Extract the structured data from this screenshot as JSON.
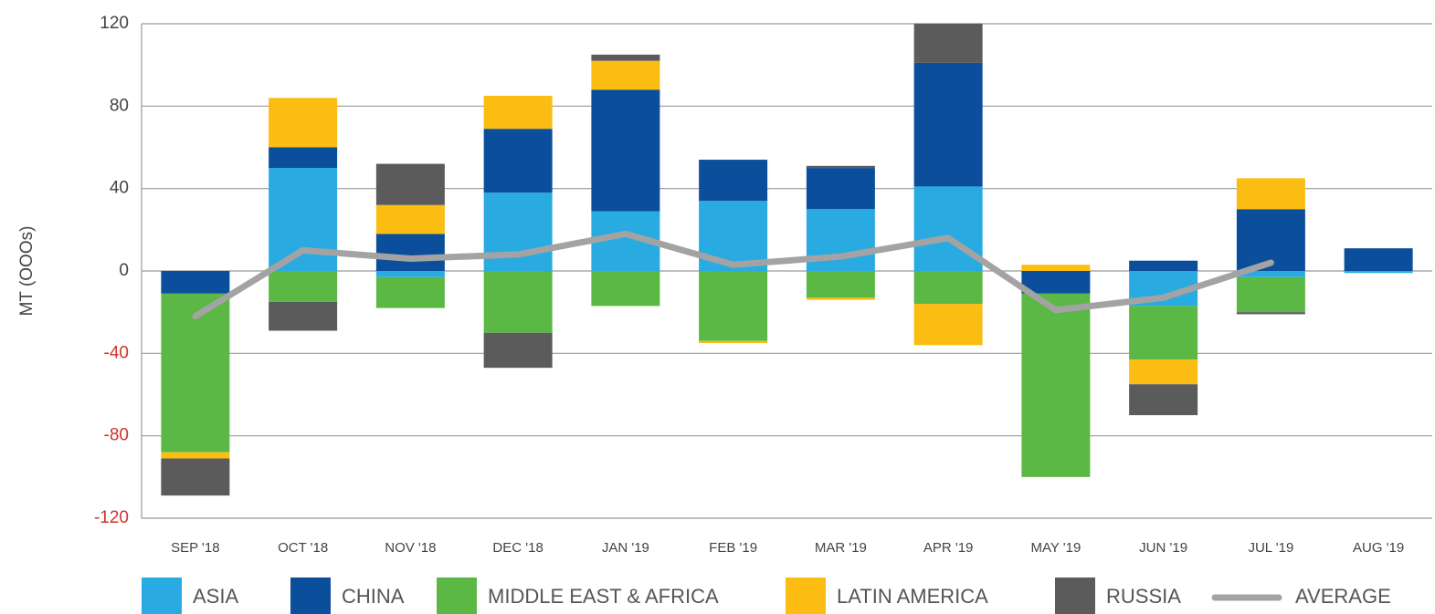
{
  "chart_data": {
    "type": "stacked_bar_line",
    "y_label": "MT (OOOs)",
    "categories": [
      "SEP '18",
      "OCT '18",
      "NOV '18",
      "DEC '18",
      "JAN '19",
      "FEB '19",
      "MAR '19",
      "APR '19",
      "MAY '19",
      "JUN '19",
      "JUL '19",
      "AUG '19"
    ],
    "series": [
      {
        "name": "ASIA",
        "color": "#29abe2",
        "values": [
          0,
          50,
          -3,
          38,
          29,
          34,
          30,
          41,
          0,
          -17,
          -3,
          -1
        ]
      },
      {
        "name": "CHINA",
        "color": "#0b4f9c",
        "values": [
          -11,
          10,
          18,
          31,
          59,
          20,
          20,
          60,
          -11,
          5,
          30,
          11
        ]
      },
      {
        "name": "MIDDLE EAST & AFRICA",
        "color": "#5cb844",
        "values": [
          -77,
          -15,
          -15,
          -30,
          -17,
          -34,
          -13,
          -16,
          -89,
          -26,
          -17,
          0
        ]
      },
      {
        "name": "LATIN AMERICA",
        "color": "#fbbd12",
        "values": [
          -3,
          24,
          14,
          16,
          14,
          -1,
          -1,
          -20,
          3,
          -12,
          15,
          0
        ]
      },
      {
        "name": "RUSSIA",
        "color": "#5b5b5b",
        "values": [
          -18,
          -14,
          20,
          -17,
          3,
          0,
          1,
          19,
          0,
          -15,
          -1,
          0
        ]
      }
    ],
    "line": {
      "name": "AVERAGE",
      "color": "#a3a3a3",
      "values": [
        -22,
        10,
        6,
        8,
        18,
        3,
        7,
        16,
        -19,
        -13,
        4,
        null
      ]
    },
    "ylim": [
      -120,
      120
    ],
    "yticks": [
      -120,
      -80,
      -40,
      0,
      40,
      80,
      120
    ],
    "negative_tick_color": "#d0312d",
    "grid": true,
    "legend": "bottom"
  }
}
